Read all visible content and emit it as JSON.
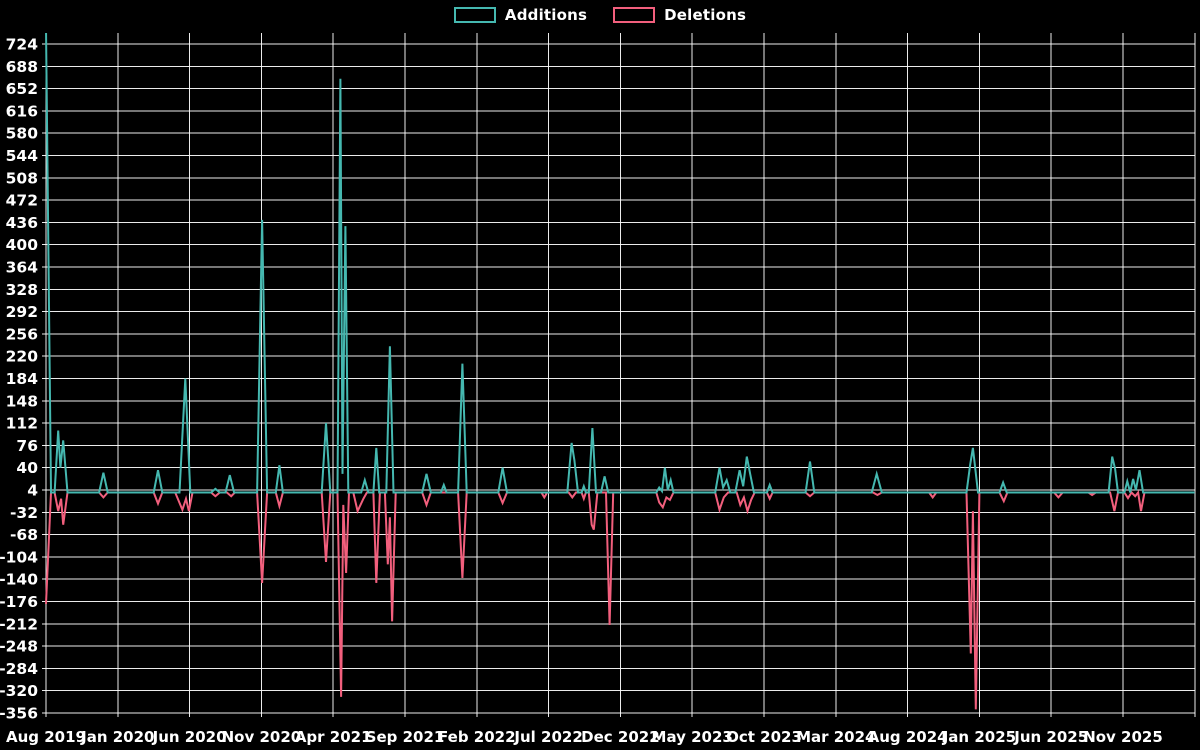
{
  "legend": {
    "items": [
      {
        "label": "Additions",
        "color": "#45b8b0"
      },
      {
        "label": "Deletions",
        "color": "#f25f7d"
      }
    ]
  },
  "chart_data": {
    "type": "line",
    "title": "",
    "xlabel": "",
    "ylabel": "",
    "background": "#000000",
    "grid": true,
    "grid_color": "#ffffff",
    "text_color": "#ffffff",
    "legend_position": "top-center",
    "x_unit": "months since Aug 2019",
    "x_tick_interval_months": 5,
    "x_tick_labels": [
      "Aug 2019",
      "Jan 2020",
      "Jun 2020",
      "Nov 2020",
      "Apr 2021",
      "Sep 2021",
      "Feb 2022",
      "Jul 2022",
      "Dec 2022",
      "May 2023",
      "Oct 2023",
      "Mar 2024",
      "Aug 2024",
      "Jan 2025",
      "Jun 2025",
      "Nov 2025"
    ],
    "x_tick_month_indices": [
      0,
      5,
      10,
      15,
      20,
      25,
      30,
      35,
      40,
      45,
      50,
      55,
      60,
      65,
      70,
      75
    ],
    "x_domain_months": [
      0,
      80
    ],
    "y_ticks": [
      724,
      688,
      652,
      616,
      580,
      544,
      508,
      472,
      436,
      400,
      364,
      328,
      292,
      256,
      220,
      184,
      148,
      112,
      76,
      40,
      4,
      -32,
      -68,
      -104,
      -140,
      -176,
      -212,
      -248,
      -284,
      -320,
      -356
    ],
    "y_tick_step": 36,
    "ylim": [
      -356,
      724
    ],
    "series": [
      {
        "name": "Additions",
        "color": "#45b8b0",
        "points": [
          [
            0,
            750
          ],
          [
            0.35,
            0
          ],
          [
            0.6,
            0
          ],
          [
            0.85,
            100
          ],
          [
            1.0,
            40
          ],
          [
            1.2,
            84
          ],
          [
            1.5,
            0
          ],
          [
            3.7,
            0
          ],
          [
            4.0,
            32
          ],
          [
            4.3,
            0
          ],
          [
            7.5,
            0
          ],
          [
            7.8,
            36
          ],
          [
            8.1,
            0
          ],
          [
            9.3,
            0
          ],
          [
            9.7,
            184
          ],
          [
            10.05,
            0
          ],
          [
            11.5,
            0
          ],
          [
            11.8,
            6
          ],
          [
            12.1,
            0
          ],
          [
            12.5,
            0
          ],
          [
            12.8,
            28
          ],
          [
            13.1,
            0
          ],
          [
            14.7,
            0
          ],
          [
            15.05,
            440
          ],
          [
            15.4,
            0
          ],
          [
            16.0,
            0
          ],
          [
            16.25,
            44
          ],
          [
            16.5,
            0
          ],
          [
            19.2,
            0
          ],
          [
            19.5,
            112
          ],
          [
            19.8,
            0
          ],
          [
            20.3,
            0
          ],
          [
            20.5,
            668
          ],
          [
            20.65,
            30
          ],
          [
            20.85,
            430
          ],
          [
            21.05,
            0
          ],
          [
            21.95,
            0
          ],
          [
            22.2,
            20
          ],
          [
            22.45,
            0
          ],
          [
            22.8,
            0
          ],
          [
            23.0,
            72
          ],
          [
            23.2,
            0
          ],
          [
            23.7,
            0
          ],
          [
            23.95,
            236
          ],
          [
            24.2,
            0
          ],
          [
            26.2,
            0
          ],
          [
            26.5,
            30
          ],
          [
            26.8,
            0
          ],
          [
            27.5,
            0
          ],
          [
            27.7,
            12
          ],
          [
            27.9,
            0
          ],
          [
            28.7,
            0
          ],
          [
            29.0,
            208
          ],
          [
            29.3,
            0
          ],
          [
            31.5,
            0
          ],
          [
            31.8,
            40
          ],
          [
            32.1,
            0
          ],
          [
            36.3,
            0
          ],
          [
            36.6,
            80
          ],
          [
            36.8,
            52
          ],
          [
            37.05,
            0
          ],
          [
            37.3,
            0
          ],
          [
            37.45,
            10
          ],
          [
            37.6,
            0
          ],
          [
            37.8,
            0
          ],
          [
            38.05,
            104
          ],
          [
            38.3,
            0
          ],
          [
            38.65,
            0
          ],
          [
            38.9,
            26
          ],
          [
            39.15,
            0
          ],
          [
            42.5,
            0
          ],
          [
            42.7,
            8
          ],
          [
            42.9,
            2
          ],
          [
            43.1,
            40
          ],
          [
            43.3,
            4
          ],
          [
            43.5,
            20
          ],
          [
            43.7,
            0
          ],
          [
            46.6,
            0
          ],
          [
            46.9,
            40
          ],
          [
            47.15,
            8
          ],
          [
            47.4,
            20
          ],
          [
            47.65,
            0
          ],
          [
            48.0,
            0
          ],
          [
            48.3,
            36
          ],
          [
            48.55,
            10
          ],
          [
            48.8,
            58
          ],
          [
            49.05,
            28
          ],
          [
            49.3,
            0
          ],
          [
            50.2,
            0
          ],
          [
            50.4,
            12
          ],
          [
            50.6,
            0
          ],
          [
            52.9,
            0
          ],
          [
            53.2,
            50
          ],
          [
            53.5,
            0
          ],
          [
            57.5,
            0
          ],
          [
            57.85,
            30
          ],
          [
            58.2,
            0
          ],
          [
            64.1,
            0
          ],
          [
            64.35,
            44
          ],
          [
            64.55,
            72
          ],
          [
            64.9,
            0
          ],
          [
            66.4,
            0
          ],
          [
            66.65,
            16
          ],
          [
            66.9,
            0
          ],
          [
            74.0,
            0
          ],
          [
            74.25,
            58
          ],
          [
            74.45,
            38
          ],
          [
            74.65,
            0
          ],
          [
            75.1,
            0
          ],
          [
            75.3,
            18
          ],
          [
            75.5,
            0
          ],
          [
            75.7,
            22
          ],
          [
            75.9,
            4
          ],
          [
            76.15,
            36
          ],
          [
            76.4,
            0
          ],
          [
            80,
            0
          ]
        ]
      },
      {
        "name": "Deletions",
        "color": "#f25f7d",
        "points": [
          [
            0,
            -180
          ],
          [
            0.35,
            0
          ],
          [
            0.6,
            0
          ],
          [
            0.85,
            -30
          ],
          [
            1.05,
            -10
          ],
          [
            1.2,
            -52
          ],
          [
            1.5,
            0
          ],
          [
            3.7,
            0
          ],
          [
            4.0,
            -8
          ],
          [
            4.3,
            0
          ],
          [
            7.5,
            0
          ],
          [
            7.8,
            -18
          ],
          [
            8.1,
            0
          ],
          [
            9.0,
            0
          ],
          [
            9.5,
            -28
          ],
          [
            9.75,
            -10
          ],
          [
            9.95,
            -30
          ],
          [
            10.2,
            0
          ],
          [
            11.5,
            0
          ],
          [
            11.8,
            -6
          ],
          [
            12.1,
            0
          ],
          [
            12.6,
            0
          ],
          [
            12.9,
            -6
          ],
          [
            13.15,
            0
          ],
          [
            14.7,
            0
          ],
          [
            15.05,
            -146
          ],
          [
            15.4,
            0
          ],
          [
            16.0,
            0
          ],
          [
            16.25,
            -22
          ],
          [
            16.5,
            0
          ],
          [
            19.2,
            0
          ],
          [
            19.5,
            -112
          ],
          [
            19.8,
            0
          ],
          [
            20.3,
            0
          ],
          [
            20.55,
            -330
          ],
          [
            20.7,
            -20
          ],
          [
            20.9,
            -130
          ],
          [
            21.1,
            0
          ],
          [
            21.4,
            0
          ],
          [
            21.7,
            -30
          ],
          [
            22.1,
            -10
          ],
          [
            22.35,
            0
          ],
          [
            22.8,
            0
          ],
          [
            23.0,
            -146
          ],
          [
            23.25,
            0
          ],
          [
            23.6,
            0
          ],
          [
            23.8,
            -116
          ],
          [
            23.95,
            -40
          ],
          [
            24.1,
            -208
          ],
          [
            24.35,
            0
          ],
          [
            26.2,
            0
          ],
          [
            26.5,
            -20
          ],
          [
            26.8,
            0
          ],
          [
            28.7,
            0
          ],
          [
            29.0,
            -138
          ],
          [
            29.3,
            0
          ],
          [
            31.5,
            0
          ],
          [
            31.8,
            -17
          ],
          [
            32.1,
            0
          ],
          [
            34.5,
            0
          ],
          [
            34.7,
            -8
          ],
          [
            34.9,
            0
          ],
          [
            36.4,
            0
          ],
          [
            36.65,
            -8
          ],
          [
            36.9,
            0
          ],
          [
            37.3,
            0
          ],
          [
            37.45,
            -10
          ],
          [
            37.6,
            0
          ],
          [
            37.8,
            0
          ],
          [
            38.0,
            -52
          ],
          [
            38.15,
            -60
          ],
          [
            38.4,
            0
          ],
          [
            39.0,
            0
          ],
          [
            39.25,
            -214
          ],
          [
            39.5,
            0
          ],
          [
            42.5,
            0
          ],
          [
            42.7,
            -16
          ],
          [
            42.95,
            -24
          ],
          [
            43.2,
            -8
          ],
          [
            43.45,
            -12
          ],
          [
            43.7,
            0
          ],
          [
            46.6,
            0
          ],
          [
            46.9,
            -28
          ],
          [
            47.2,
            -8
          ],
          [
            47.5,
            0
          ],
          [
            48.1,
            0
          ],
          [
            48.35,
            -20
          ],
          [
            48.6,
            -8
          ],
          [
            48.85,
            -30
          ],
          [
            49.1,
            -12
          ],
          [
            49.35,
            0
          ],
          [
            50.2,
            0
          ],
          [
            50.4,
            -10
          ],
          [
            50.6,
            0
          ],
          [
            52.9,
            0
          ],
          [
            53.2,
            -6
          ],
          [
            53.5,
            0
          ],
          [
            57.6,
            0
          ],
          [
            57.9,
            -4
          ],
          [
            58.2,
            0
          ],
          [
            61.5,
            0
          ],
          [
            61.75,
            -8
          ],
          [
            62.0,
            0
          ],
          [
            64.1,
            0
          ],
          [
            64.4,
            -260
          ],
          [
            64.55,
            -30
          ],
          [
            64.75,
            -350
          ],
          [
            65.0,
            0
          ],
          [
            66.4,
            0
          ],
          [
            66.7,
            -14
          ],
          [
            66.95,
            0
          ],
          [
            70.2,
            0
          ],
          [
            70.5,
            -8
          ],
          [
            70.8,
            0
          ],
          [
            72.6,
            0
          ],
          [
            72.85,
            -4
          ],
          [
            73.1,
            0
          ],
          [
            74.1,
            0
          ],
          [
            74.4,
            -30
          ],
          [
            74.65,
            0
          ],
          [
            75.1,
            0
          ],
          [
            75.35,
            -9
          ],
          [
            75.6,
            0
          ],
          [
            75.85,
            -6
          ],
          [
            76.05,
            0
          ],
          [
            76.25,
            -30
          ],
          [
            76.5,
            0
          ],
          [
            80,
            0
          ]
        ]
      }
    ]
  }
}
